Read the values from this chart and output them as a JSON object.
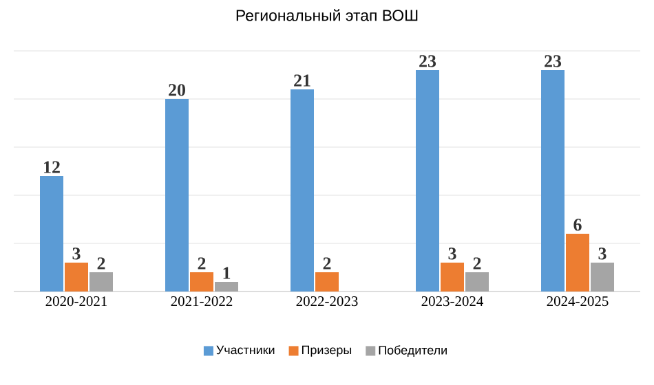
{
  "chart_data": {
    "type": "bar",
    "title": "Региональный этап ВОШ",
    "categories": [
      "2020-2021",
      "2021-2022",
      "2022-2023",
      "2023-2024",
      "2024-2025"
    ],
    "series": [
      {
        "name": "Участники",
        "color": "#5b9bd5",
        "values": [
          12,
          20,
          21,
          23,
          23
        ]
      },
      {
        "name": "Призеры",
        "color": "#ed7d31",
        "values": [
          3,
          2,
          2,
          3,
          6
        ]
      },
      {
        "name": "Победители",
        "color": "#a5a5a5",
        "values": [
          2,
          1,
          null,
          2,
          3
        ]
      }
    ],
    "ylim": [
      0,
      25
    ],
    "yticks": [
      {
        "value": 0,
        "label": null
      },
      {
        "value": 5,
        "label": null
      },
      {
        "value": 10,
        "label": null
      },
      {
        "value": 15,
        "label": null
      },
      {
        "value": 20,
        "label": null
      },
      {
        "value": 25,
        "label": null
      }
    ],
    "tick_labels": "x",
    "grid": "y",
    "legend": "bottom",
    "data_labels": true
  }
}
